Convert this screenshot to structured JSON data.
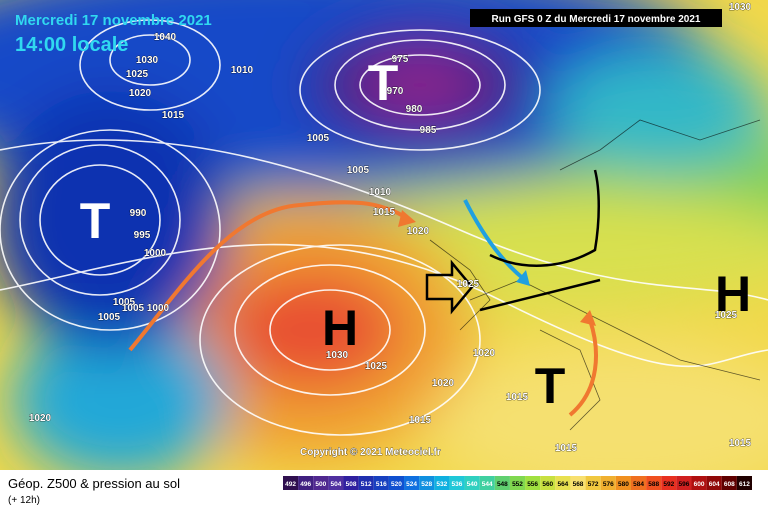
{
  "header": {
    "date": "Mercredi 17 novembre 2021",
    "time": "14:00 locale",
    "run": "Run GFS 0 Z du Mercredi 17 novembre 2021"
  },
  "copyright": "Copyright © 2021 Meteociel.fr",
  "legend": {
    "title": "Géop. Z500 & pression au sol",
    "step": "(+ 12h)",
    "scale": [
      492,
      496,
      500,
      504,
      508,
      512,
      516,
      520,
      524,
      528,
      532,
      536,
      540,
      544,
      548,
      552,
      556,
      560,
      564,
      568,
      572,
      576,
      580,
      584,
      588,
      592,
      596,
      600,
      604,
      608,
      612
    ]
  },
  "symbols": [
    "T",
    "T",
    "H",
    "T",
    "H"
  ],
  "isobar_labels": [
    1040,
    1030,
    1025,
    1020,
    1015,
    1010,
    1005,
    1005,
    1010,
    1015,
    1020,
    990,
    995,
    1000,
    1005,
    1005,
    1005,
    1000,
    975,
    970,
    980,
    985,
    990,
    1030,
    1025,
    1025,
    1020,
    1020,
    1015,
    1015,
    1015,
    1020,
    1025,
    1015,
    1030
  ]
}
